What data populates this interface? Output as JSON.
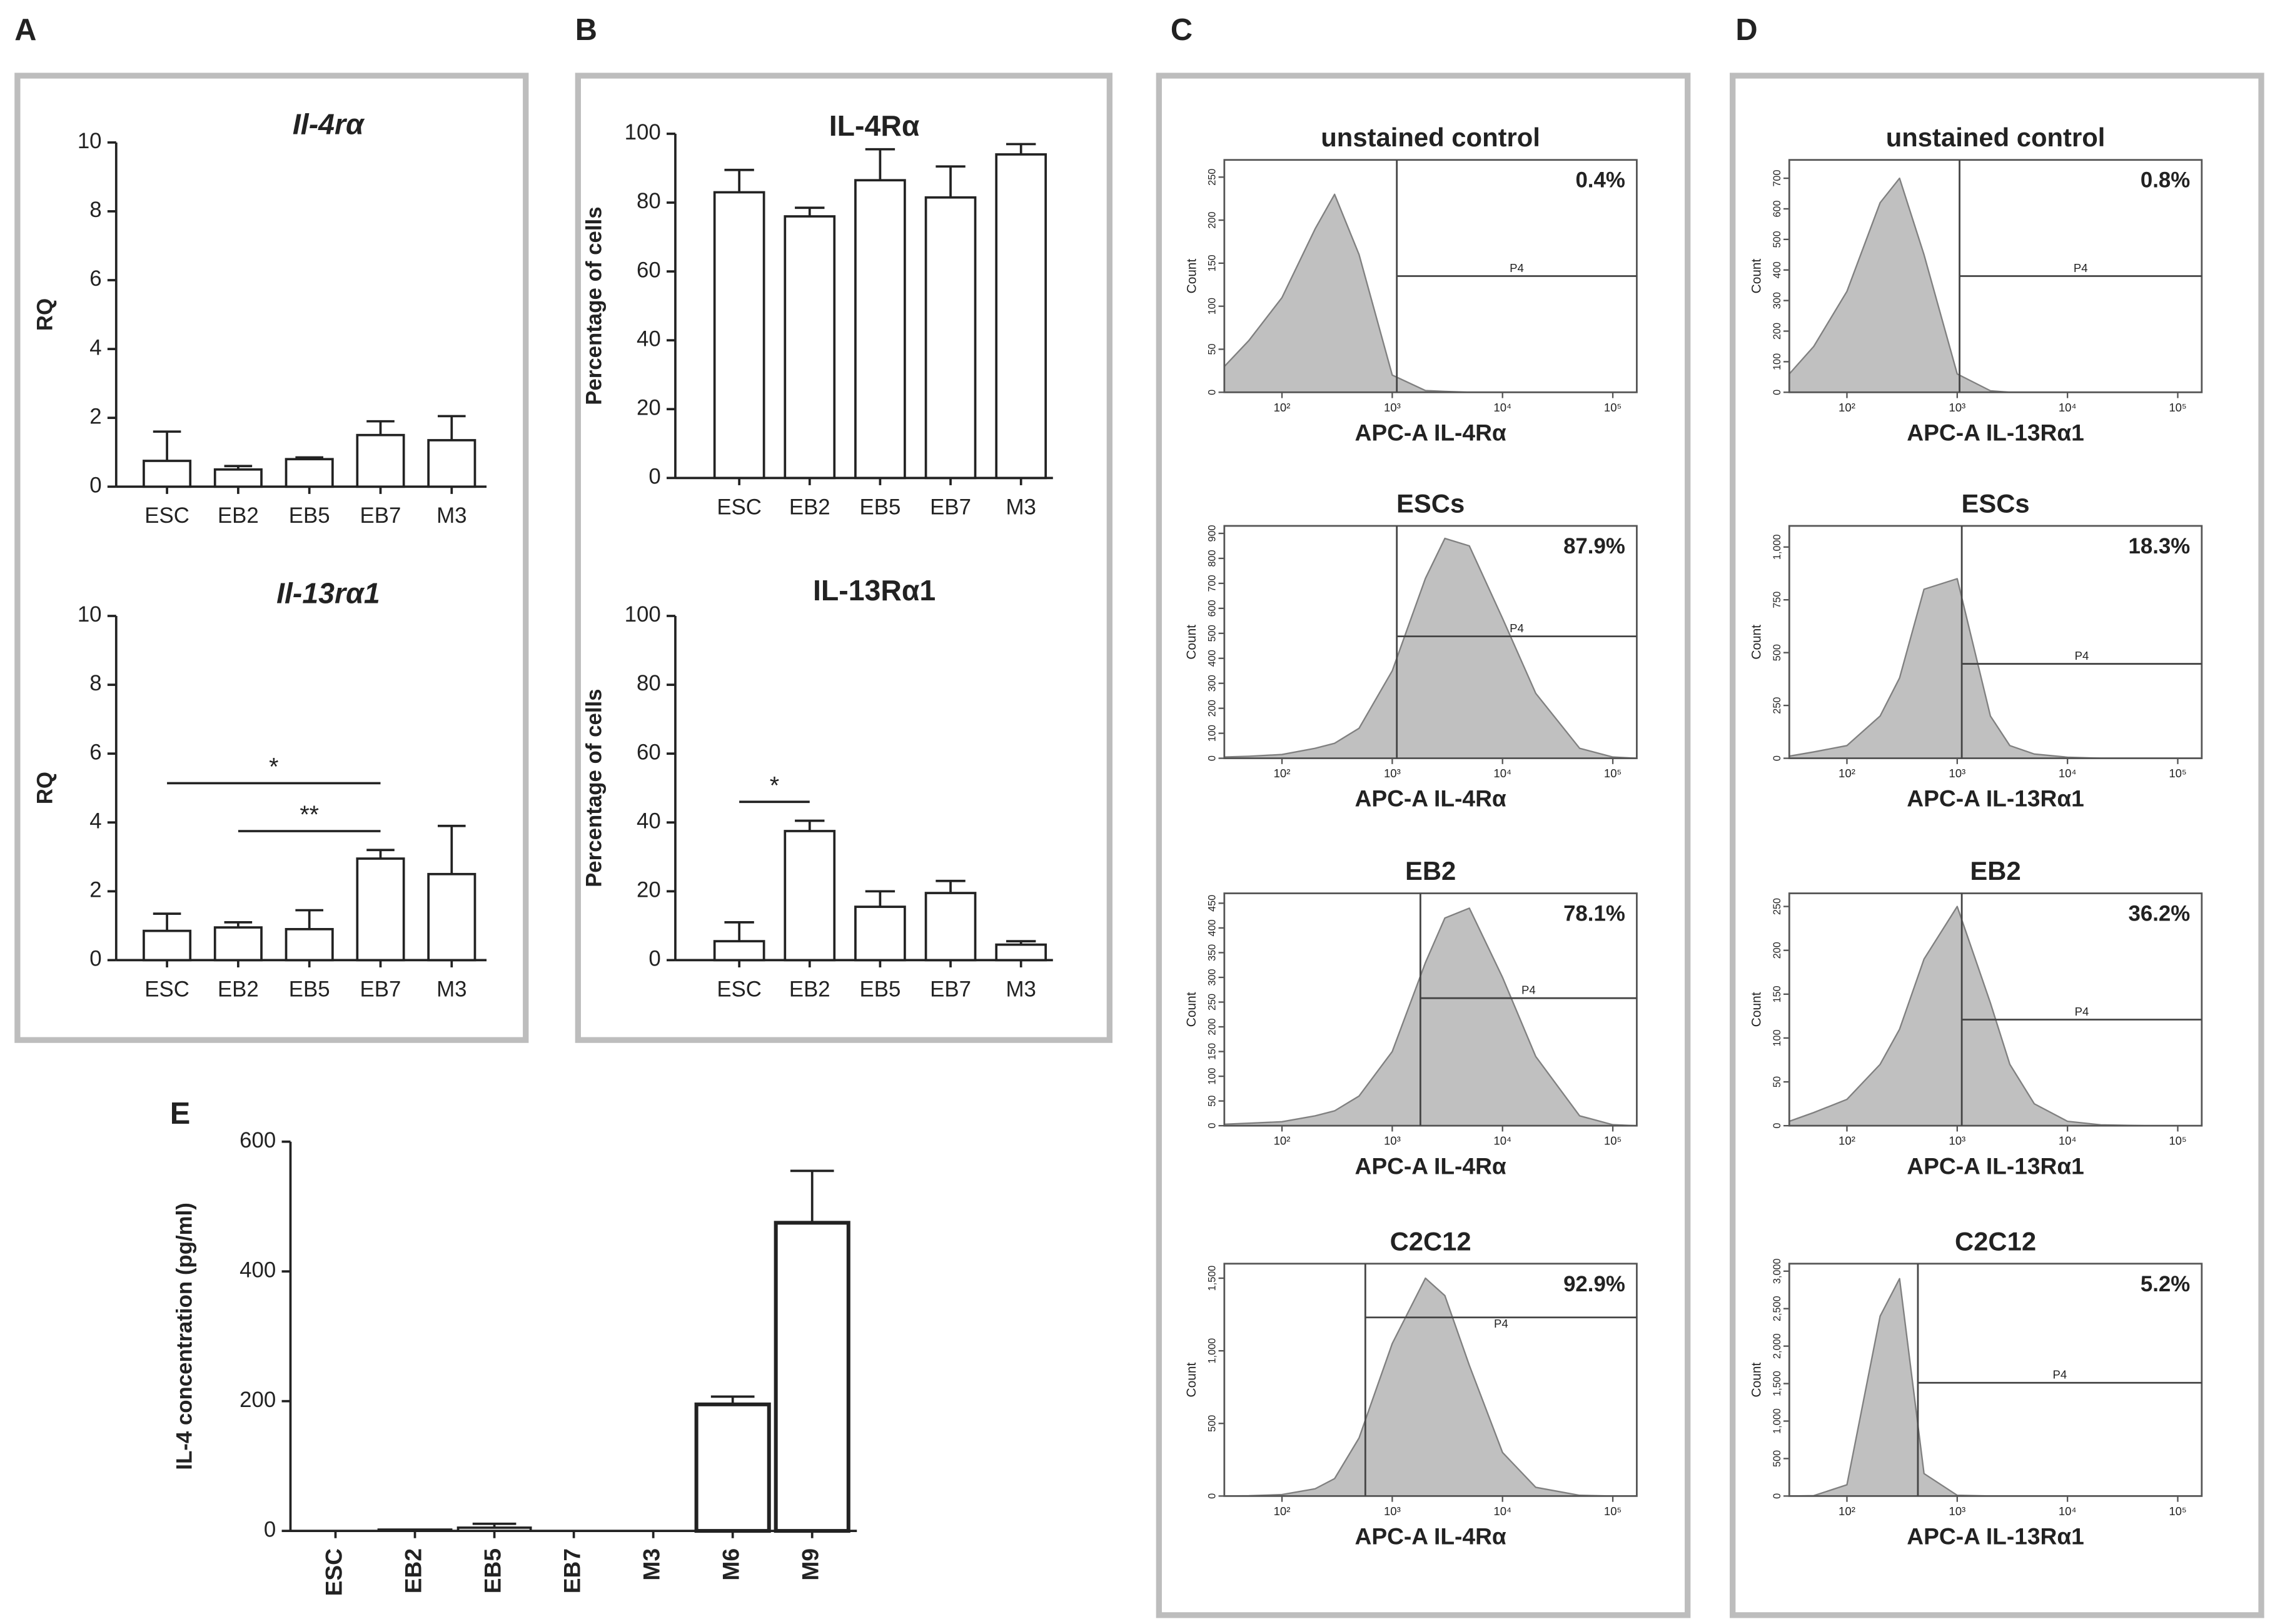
{
  "panel_labels": [
    "A",
    "B",
    "C",
    "D",
    "E"
  ],
  "chart_data": [
    {
      "type": "bar",
      "title": "Il-4rα",
      "title_style": "italic",
      "y_label": "RQ",
      "categories": [
        "ESC",
        "EB2",
        "EB5",
        "EB7",
        "M3"
      ],
      "values": [
        0.75,
        0.5,
        0.8,
        1.5,
        1.35
      ],
      "errors": [
        0.85,
        0.1,
        0.05,
        0.4,
        0.7
      ],
      "ylim": [
        0,
        10
      ],
      "yticks": [
        0,
        2,
        4,
        6,
        8,
        10
      ],
      "color": "#ffffff"
    },
    {
      "type": "bar",
      "title": "Il-13rα1",
      "title_style": "italic",
      "y_label": "RQ",
      "categories": [
        "ESC",
        "EB2",
        "EB5",
        "EB7",
        "M3"
      ],
      "values": [
        0.85,
        0.95,
        0.9,
        2.95,
        2.5
      ],
      "errors": [
        0.5,
        0.15,
        0.55,
        0.25,
        1.4
      ],
      "ylim": [
        0,
        10
      ],
      "yticks": [
        0,
        2,
        4,
        6,
        8,
        10
      ],
      "color": "#ffffff",
      "annotations": [
        {
          "text": "*",
          "from": "ESC",
          "to": "EB7"
        },
        {
          "text": "**",
          "from": "EB2",
          "to": "EB7"
        }
      ]
    },
    {
      "type": "bar",
      "title": "IL-4Rα",
      "y_label": "Percentage of cells",
      "categories": [
        "ESC",
        "EB2",
        "EB5",
        "EB7",
        "M3"
      ],
      "values": [
        83,
        76,
        86.5,
        81.5,
        94
      ],
      "errors": [
        6.5,
        2.5,
        9,
        9,
        3
      ],
      "ylim": [
        0,
        100
      ],
      "yticks": [
        0,
        20,
        40,
        60,
        80,
        100
      ],
      "color": "#ffffff"
    },
    {
      "type": "bar",
      "title": "IL-13Rα1",
      "y_label": "Percentage of cells",
      "categories": [
        "ESC",
        "EB2",
        "EB5",
        "EB7",
        "M3"
      ],
      "values": [
        5.5,
        37.5,
        15.5,
        19.5,
        4.5
      ],
      "errors": [
        5.5,
        3,
        4.5,
        3.5,
        1
      ],
      "ylim": [
        0,
        100
      ],
      "yticks": [
        0,
        20,
        40,
        60,
        80,
        100
      ],
      "color": "#ffffff",
      "annotations": [
        {
          "text": "*",
          "from": "ESC",
          "to": "EB2"
        }
      ]
    },
    {
      "type": "bar",
      "y_label": "IL-4 concentration (pg/ml)",
      "categories": [
        "ESC",
        "EB2",
        "EB5",
        "EB7",
        "M3",
        "M6",
        "M9"
      ],
      "values": [
        0,
        2,
        5,
        0,
        0,
        195,
        475
      ],
      "errors": [
        0,
        0,
        6,
        0,
        0,
        12,
        80
      ],
      "ylim": [
        0,
        600
      ],
      "yticks": [
        0,
        200,
        400,
        600
      ],
      "color": "#ffffff",
      "x_labels": "vertical"
    },
    {
      "type": "flow",
      "title": "unstained control",
      "x_label": "APC-A IL-4Rα",
      "y_label": "Count",
      "annotation": "0.4%",
      "gate_label": "P4",
      "gate": {
        "x": 1100,
        "y": 135
      },
      "xscale": "log",
      "xlim": [
        30,
        165000
      ],
      "xticks": [
        {
          "value": 100,
          "label": "10²"
        },
        {
          "value": 1000,
          "label": "10³"
        },
        {
          "value": 10000,
          "label": "10⁴"
        },
        {
          "value": 100000,
          "label": "10⁵"
        }
      ],
      "ylim": [
        0,
        270
      ],
      "yticks": [
        0,
        50,
        100,
        150,
        200,
        250
      ],
      "x": [
        30,
        50,
        100,
        200,
        300,
        500,
        1000,
        2000,
        3000,
        5000,
        10000,
        20000,
        50000,
        100000,
        160000
      ],
      "values": [
        30,
        60,
        110,
        190,
        230,
        160,
        20,
        2,
        1,
        0,
        0,
        0,
        0,
        0,
        0
      ],
      "color": "#c0c0c0"
    },
    {
      "type": "flow",
      "title": "ESCs",
      "x_label": "APC-A IL-4Rα",
      "y_label": "Count",
      "annotation": "87.9%",
      "gate_label": "P4",
      "gate": {
        "x": 1100,
        "y": 488
      },
      "xscale": "log",
      "xlim": [
        30,
        165000
      ],
      "xticks": [
        {
          "value": 100,
          "label": "10²"
        },
        {
          "value": 1000,
          "label": "10³"
        },
        {
          "value": 10000,
          "label": "10⁴"
        },
        {
          "value": 100000,
          "label": "10⁵"
        }
      ],
      "ylim": [
        0,
        930
      ],
      "yticks": [
        0,
        100,
        200,
        300,
        400,
        500,
        600,
        700,
        800,
        900
      ],
      "x": [
        30,
        50,
        100,
        200,
        300,
        500,
        1000,
        2000,
        3000,
        5000,
        10000,
        20000,
        50000,
        100000,
        160000
      ],
      "values": [
        5,
        8,
        15,
        40,
        60,
        120,
        350,
        720,
        880,
        850,
        560,
        260,
        40,
        5,
        0
      ],
      "color": "#c0c0c0"
    },
    {
      "type": "flow",
      "title": "EB2",
      "x_label": "APC-A IL-4Rα",
      "y_label": "Count",
      "annotation": "78.1%",
      "gate_label": "P4",
      "gate": {
        "x": 1800,
        "y": 258
      },
      "xscale": "log",
      "xlim": [
        30,
        165000
      ],
      "xticks": [
        {
          "value": 100,
          "label": "10²"
        },
        {
          "value": 1000,
          "label": "10³"
        },
        {
          "value": 10000,
          "label": "10⁴"
        },
        {
          "value": 100000,
          "label": "10⁵"
        }
      ],
      "ylim": [
        0,
        470
      ],
      "yticks": [
        0,
        50,
        100,
        150,
        200,
        250,
        300,
        350,
        400,
        450
      ],
      "x": [
        30,
        50,
        100,
        200,
        300,
        500,
        1000,
        2000,
        3000,
        5000,
        10000,
        20000,
        50000,
        100000,
        160000
      ],
      "values": [
        3,
        5,
        8,
        20,
        30,
        60,
        150,
        330,
        420,
        440,
        300,
        140,
        20,
        2,
        0
      ],
      "color": "#c0c0c0"
    },
    {
      "type": "flow",
      "title": "C2C12",
      "x_label": "APC-A IL-4Rα",
      "y_label": "Count",
      "annotation": "92.9%",
      "gate_label": "P4",
      "gate": {
        "x": 570,
        "y": 1230
      },
      "xscale": "log",
      "xlim": [
        30,
        165000
      ],
      "xticks": [
        {
          "value": 100,
          "label": "10²"
        },
        {
          "value": 1000,
          "label": "10³"
        },
        {
          "value": 10000,
          "label": "10⁴"
        },
        {
          "value": 100000,
          "label": "10⁵"
        }
      ],
      "ylim": [
        0,
        1600
      ],
      "yticks": [
        0,
        500,
        {
          "value": 1000,
          "label": "1,000"
        },
        {
          "value": 1500,
          "label": "1,500"
        }
      ],
      "x": [
        30,
        50,
        100,
        200,
        300,
        500,
        1000,
        2000,
        3000,
        5000,
        10000,
        20000,
        50000,
        100000,
        160000
      ],
      "values": [
        0,
        2,
        10,
        50,
        120,
        400,
        1050,
        1500,
        1380,
        900,
        300,
        60,
        5,
        0,
        0
      ],
      "color": "#c0c0c0"
    },
    {
      "type": "flow",
      "title": "unstained control",
      "x_label": "APC-A IL-13Rα1",
      "y_label": "Count",
      "annotation": "0.8%",
      "gate_label": "P4",
      "gate": {
        "x": 1050,
        "y": 380
      },
      "xscale": "log",
      "xlim": [
        30,
        165000
      ],
      "xticks": [
        {
          "value": 100,
          "label": "10²"
        },
        {
          "value": 1000,
          "label": "10³"
        },
        {
          "value": 10000,
          "label": "10⁴"
        },
        {
          "value": 100000,
          "label": "10⁵"
        }
      ],
      "ylim": [
        0,
        760
      ],
      "yticks": [
        0,
        100,
        200,
        300,
        400,
        500,
        600,
        700
      ],
      "x": [
        30,
        50,
        100,
        200,
        300,
        500,
        1000,
        2000,
        3000,
        5000,
        10000,
        20000,
        50000,
        100000,
        160000
      ],
      "values": [
        60,
        150,
        330,
        620,
        700,
        450,
        60,
        5,
        0,
        0,
        0,
        0,
        0,
        0,
        0
      ],
      "color": "#c0c0c0"
    },
    {
      "type": "flow",
      "title": "ESCs",
      "x_label": "APC-A IL-13Rα1",
      "y_label": "Count",
      "annotation": "18.3%",
      "gate_label": "P4",
      "gate": {
        "x": 1100,
        "y": 447
      },
      "xscale": "log",
      "xlim": [
        30,
        165000
      ],
      "xticks": [
        {
          "value": 100,
          "label": "10²"
        },
        {
          "value": 1000,
          "label": "10³"
        },
        {
          "value": 10000,
          "label": "10⁴"
        },
        {
          "value": 100000,
          "label": "10⁵"
        }
      ],
      "ylim": [
        0,
        1100
      ],
      "yticks": [
        0,
        250,
        500,
        750,
        {
          "value": 1000,
          "label": "1,000"
        }
      ],
      "x": [
        30,
        50,
        100,
        200,
        300,
        500,
        1000,
        2000,
        3000,
        5000,
        10000,
        20000,
        50000,
        100000,
        160000
      ],
      "values": [
        10,
        30,
        60,
        200,
        380,
        800,
        850,
        200,
        60,
        20,
        5,
        0,
        0,
        0,
        0
      ],
      "color": "#c0c0c0"
    },
    {
      "type": "flow",
      "title": "EB2",
      "x_label": "APC-A IL-13Rα1",
      "y_label": "Count",
      "annotation": "36.2%",
      "gate_label": "P4",
      "gate": {
        "x": 1100,
        "y": 121
      },
      "xscale": "log",
      "xlim": [
        30,
        165000
      ],
      "xticks": [
        {
          "value": 100,
          "label": "10²"
        },
        {
          "value": 1000,
          "label": "10³"
        },
        {
          "value": 10000,
          "label": "10⁴"
        },
        {
          "value": 100000,
          "label": "10⁵"
        }
      ],
      "ylim": [
        0,
        265
      ],
      "yticks": [
        0,
        50,
        100,
        150,
        200,
        250
      ],
      "x": [
        30,
        50,
        100,
        200,
        300,
        500,
        1000,
        2000,
        3000,
        5000,
        10000,
        20000,
        50000,
        100000,
        160000
      ],
      "values": [
        5,
        15,
        30,
        70,
        110,
        190,
        250,
        140,
        70,
        25,
        5,
        1,
        0,
        0,
        0
      ],
      "color": "#c0c0c0"
    },
    {
      "type": "flow",
      "title": "C2C12",
      "x_label": "APC-A IL-13Rα1",
      "y_label": "Count",
      "annotation": "5.2%",
      "gate_label": "P4",
      "gate": {
        "x": 440,
        "y": 1511
      },
      "xscale": "log",
      "xlim": [
        30,
        165000
      ],
      "xticks": [
        {
          "value": 100,
          "label": "10²"
        },
        {
          "value": 1000,
          "label": "10³"
        },
        {
          "value": 10000,
          "label": "10⁴"
        },
        {
          "value": 100000,
          "label": "10⁵"
        }
      ],
      "ylim": [
        0,
        3100
      ],
      "yticks": [
        0,
        500,
        {
          "value": 1000,
          "label": "1,000"
        },
        {
          "value": 1500,
          "label": "1,500"
        },
        {
          "value": 2000,
          "label": "2,000"
        },
        {
          "value": 2500,
          "label": "2,500"
        },
        {
          "value": 3000,
          "label": "3,000"
        }
      ],
      "x": [
        30,
        50,
        100,
        200,
        300,
        500,
        1000,
        2000,
        3000,
        5000,
        10000,
        20000,
        50000,
        100000,
        160000
      ],
      "values": [
        0,
        5,
        150,
        2400,
        2900,
        300,
        10,
        0,
        0,
        0,
        0,
        0,
        0,
        0,
        0
      ],
      "color": "#c0c0c0"
    }
  ]
}
